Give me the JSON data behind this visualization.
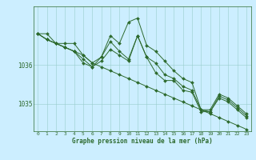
{
  "xlabel": "Graphe pression niveau de la mer (hPa)",
  "bg_color": "#cceeff",
  "grid_color": "#99cccc",
  "line_color": "#2d6a2d",
  "text_color": "#2d6a2d",
  "yticks": [
    1035,
    1036
  ],
  "ylim": [
    1034.3,
    1037.5
  ],
  "xlim": [
    -0.5,
    23.5
  ],
  "xticks": [
    0,
    1,
    2,
    3,
    4,
    5,
    6,
    7,
    8,
    9,
    10,
    11,
    12,
    13,
    14,
    15,
    16,
    17,
    18,
    19,
    20,
    21,
    22,
    23
  ],
  "series": [
    [
      1036.8,
      1036.8,
      1036.55,
      1036.55,
      1036.55,
      1036.25,
      1036.05,
      1036.2,
      1036.6,
      1036.35,
      1036.15,
      1036.75,
      1036.2,
      1036.05,
      1035.75,
      1035.65,
      1035.45,
      1035.35,
      1034.85,
      1034.85,
      1035.25,
      1035.15,
      1034.95,
      1034.75
    ],
    [
      1036.8,
      1036.65,
      1036.55,
      1036.45,
      1036.35,
      1036.25,
      1036.05,
      1035.95,
      1035.85,
      1035.75,
      1035.65,
      1035.55,
      1035.45,
      1035.35,
      1035.25,
      1035.15,
      1035.05,
      1034.95,
      1034.85,
      1034.75,
      1034.65,
      1034.55,
      1034.45,
      1034.35
    ],
    [
      1036.8,
      1036.65,
      1036.55,
      1036.45,
      1036.35,
      1036.15,
      1035.95,
      1036.2,
      1036.75,
      1036.55,
      1037.1,
      1037.2,
      1036.5,
      1036.35,
      1036.1,
      1035.85,
      1035.65,
      1035.55,
      1034.85,
      1034.8,
      1035.2,
      1035.1,
      1034.9,
      1034.7
    ],
    [
      1036.8,
      1036.65,
      1036.55,
      1036.45,
      1036.35,
      1036.05,
      1035.95,
      1036.1,
      1036.4,
      1036.25,
      1036.1,
      1036.75,
      1036.2,
      1035.8,
      1035.6,
      1035.6,
      1035.35,
      1035.3,
      1034.8,
      1034.8,
      1035.15,
      1035.05,
      1034.85,
      1034.65
    ]
  ]
}
